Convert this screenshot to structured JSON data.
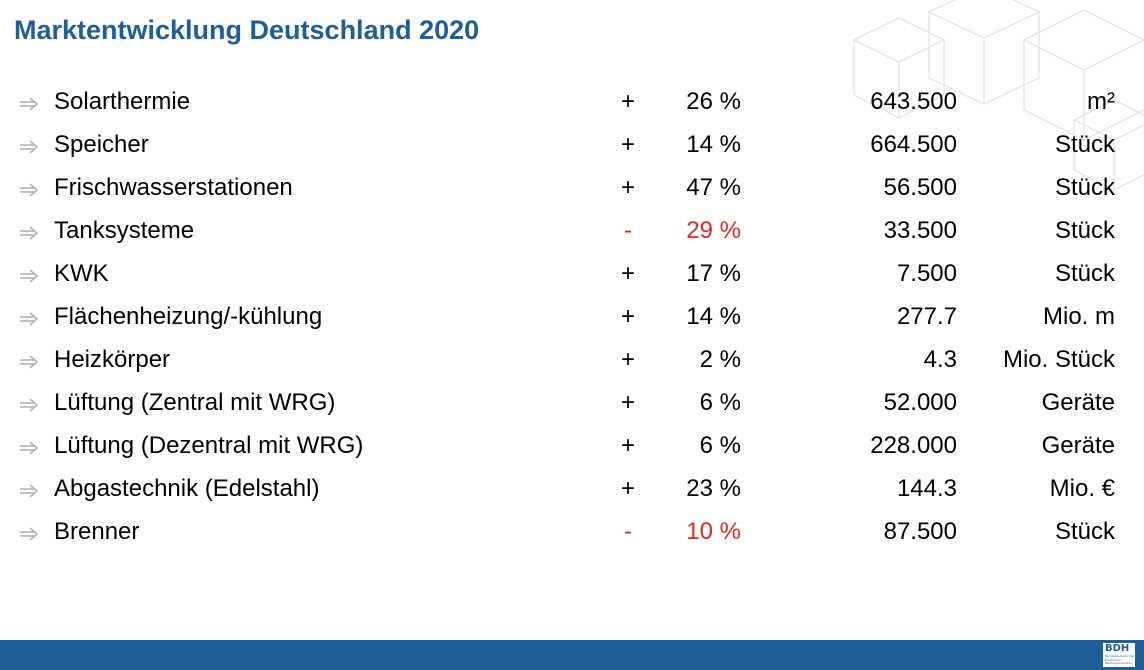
{
  "title": "Marktentwicklung Deutschland 2020",
  "rows": [
    {
      "label": "Solarthermie",
      "sign": "+",
      "pct": "26 %",
      "value": "643.500",
      "unit": "m²",
      "negative": false
    },
    {
      "label": "Speicher",
      "sign": "+",
      "pct": "14 %",
      "value": "664.500",
      "unit": "Stück",
      "negative": false
    },
    {
      "label": "Frischwasserstationen",
      "sign": "+",
      "pct": "47 %",
      "value": "56.500",
      "unit": "Stück",
      "negative": false
    },
    {
      "label": "Tanksysteme",
      "sign": "-",
      "pct": "29 %",
      "value": "33.500",
      "unit": "Stück",
      "negative": true
    },
    {
      "label": "KWK",
      "sign": "+",
      "pct": "17 %",
      "value": "7.500",
      "unit": "Stück",
      "negative": false
    },
    {
      "label": "Flächenheizung/-kühlung",
      "sign": "+",
      "pct": "14 %",
      "value": "277.7",
      "unit": "Mio. m",
      "negative": false
    },
    {
      "label": "Heizkörper",
      "sign": "+",
      "pct": "2 %",
      "value": "4.3",
      "unit": "Mio. Stück",
      "negative": false
    },
    {
      "label": "Lüftung (Zentral mit WRG)",
      "sign": "+",
      "pct": "6 %",
      "value": "52.000",
      "unit": "Geräte",
      "negative": false
    },
    {
      "label": "Lüftung (Dezentral mit WRG)",
      "sign": "+",
      "pct": "6 %",
      "value": "228.000",
      "unit": "Geräte",
      "negative": false
    },
    {
      "label": "Abgastechnik (Edelstahl)",
      "sign": "+",
      "pct": "23 %",
      "value": "144.3",
      "unit": "Mio. €",
      "negative": false
    },
    {
      "label": "Brenner",
      "sign": "-",
      "pct": "10 %",
      "value": "87.500",
      "unit": "Stück",
      "negative": true
    }
  ],
  "logo": {
    "text": "BDH",
    "subtext": "Bundesverband der Deutschen Heizungsindustrie"
  },
  "colors": {
    "brand_blue": "#1f5f99",
    "negative_red": "#e8261f",
    "arrow_gray": "#b3b3b3"
  }
}
